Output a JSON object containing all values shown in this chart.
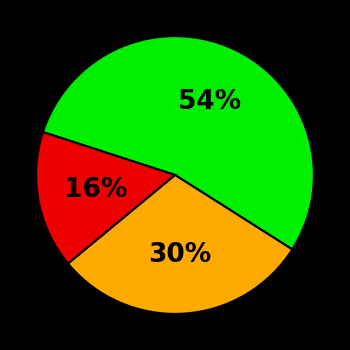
{
  "slices": [
    54,
    30,
    16
  ],
  "colors": [
    "#00ee00",
    "#ffaa00",
    "#ee0000"
  ],
  "labels": [
    "54%",
    "30%",
    "16%"
  ],
  "background_color": "#000000",
  "text_color": "#000000",
  "font_size": 19,
  "font_weight": "bold",
  "startangle": 162,
  "figsize": [
    3.5,
    3.5
  ],
  "dpi": 100,
  "label_r": 0.58
}
